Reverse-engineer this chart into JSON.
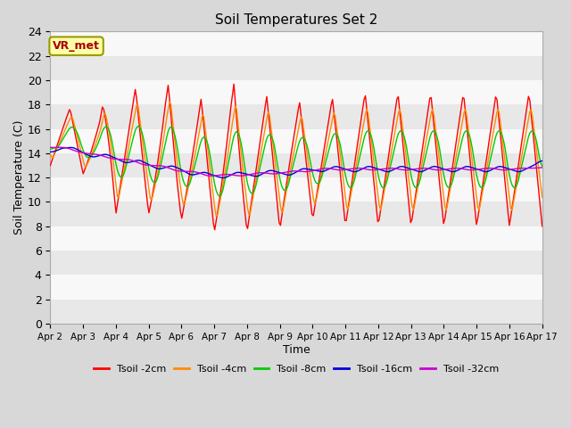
{
  "title": "Soil Temperatures Set 2",
  "xlabel": "Time",
  "ylabel": "Soil Temperature (C)",
  "annotation": "VR_met",
  "ylim": [
    0,
    24
  ],
  "yticks": [
    0,
    2,
    4,
    6,
    8,
    10,
    12,
    14,
    16,
    18,
    20,
    22,
    24
  ],
  "x_labels": [
    "Apr 2",
    "Apr 3",
    "Apr 4",
    "Apr 5",
    "Apr 6",
    "Apr 7",
    "Apr 8",
    "Apr 9",
    "Apr 10",
    "Apr 11",
    "Apr 12",
    "Apr 13",
    "Apr 14",
    "Apr 15",
    "Apr 16",
    "Apr 17"
  ],
  "fig_bg": "#d8d8d8",
  "plot_bg": "#f0f0f0",
  "band_colors": [
    "#e8e8e8",
    "#f8f8f8"
  ],
  "series": [
    {
      "label": "Tsoil -2cm",
      "color": "#ff0000"
    },
    {
      "label": "Tsoil -4cm",
      "color": "#ff8c00"
    },
    {
      "label": "Tsoil -8cm",
      "color": "#00cc00"
    },
    {
      "label": "Tsoil -16cm",
      "color": "#0000dd"
    },
    {
      "label": "Tsoil -32cm",
      "color": "#cc00cc"
    }
  ]
}
